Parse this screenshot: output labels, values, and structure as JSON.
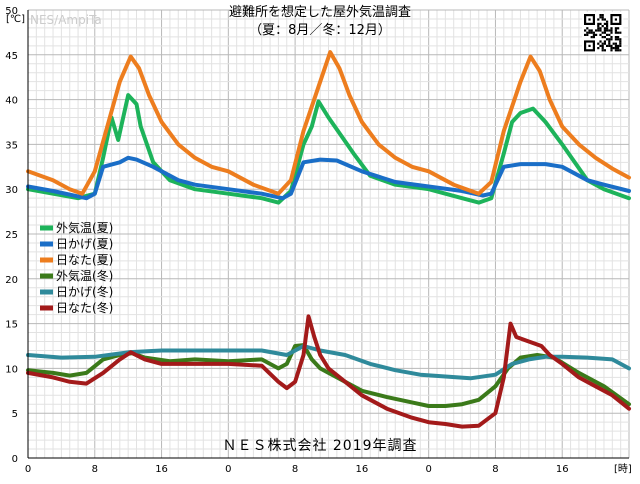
{
  "watermark": "NES/AmpiTa",
  "title": "避難所を想定した屋外気温調査",
  "subtitle": "（夏：8月／冬：12月）",
  "footer_note": "ＮＥＳ株式会社 2019年調査",
  "chart_data": {
    "type": "line",
    "title": "避難所を想定した屋外気温調査",
    "subtitle": "（夏：8月／冬：12月）",
    "ylabel": "[℃]",
    "xlabel": "[時]",
    "ylim": [
      0,
      50
    ],
    "xlim": [
      0,
      72
    ],
    "y_ticks": [
      0,
      5,
      10,
      15,
      20,
      25,
      30,
      35,
      40,
      45,
      50
    ],
    "y_tick_labels": [
      "0",
      "5",
      "10",
      "15",
      "20",
      "25",
      "30",
      "35",
      "40",
      "45",
      "50"
    ],
    "x_ticks": [
      0,
      8,
      16,
      24,
      32,
      40,
      48,
      56,
      64
    ],
    "x_tick_labels": [
      "0",
      "8",
      "16",
      "0",
      "8",
      "16",
      "0",
      "8",
      "16"
    ],
    "grid": true,
    "legend_position": "middle-left",
    "series": [
      {
        "name": "外気温(夏)",
        "color": "#1db35a",
        "x": [
          0,
          3,
          6,
          8,
          9,
          10,
          10.8,
          12,
          13,
          13.5,
          15,
          17,
          20,
          24,
          28,
          30,
          31.5,
          33,
          34,
          34.8,
          36,
          37.5,
          39,
          41,
          44,
          48,
          52,
          54,
          55.5,
          57,
          58,
          59,
          60.5,
          62,
          64,
          67,
          69,
          72
        ],
        "y": [
          30,
          29.5,
          29,
          29.5,
          33.5,
          38,
          35.5,
          40.5,
          39.5,
          37,
          33,
          31,
          30,
          29.5,
          29,
          28.5,
          29.8,
          35,
          37,
          39.8,
          38,
          36,
          34,
          31.5,
          30.5,
          30,
          29,
          28.5,
          29,
          34,
          37.5,
          38.5,
          39,
          37.5,
          35,
          31,
          30,
          29
        ]
      },
      {
        "name": "日かげ(夏)",
        "color": "#1a6ec7",
        "x": [
          0,
          3,
          6,
          7,
          8,
          9,
          11,
          12,
          13,
          15,
          18,
          20,
          24,
          28,
          30.5,
          31.5,
          33,
          35,
          37,
          40,
          44,
          48,
          52,
          54.5,
          55.5,
          57,
          59,
          62,
          64,
          67,
          69,
          72
        ],
        "y": [
          30.3,
          29.8,
          29.2,
          29,
          29.5,
          32.5,
          33,
          33.5,
          33.3,
          32.5,
          31,
          30.5,
          30,
          29.5,
          29,
          29.5,
          33,
          33.3,
          33.2,
          32,
          30.8,
          30.3,
          29.8,
          29.3,
          29.5,
          32.5,
          32.8,
          32.8,
          32.5,
          31,
          30.5,
          29.8
        ]
      },
      {
        "name": "日なた(夏)",
        "color": "#ed7d1e",
        "x": [
          0,
          3,
          5,
          6.5,
          8,
          9.5,
          11,
          12.3,
          13.3,
          14.5,
          16,
          18,
          20,
          22,
          24,
          27,
          30,
          31.5,
          33,
          35,
          36.2,
          37.3,
          38.5,
          40,
          42,
          44,
          46,
          48,
          51,
          54,
          55.5,
          57,
          59,
          60.2,
          61.3,
          62.5,
          64,
          66,
          68,
          70,
          72
        ],
        "y": [
          32,
          31,
          30,
          29.5,
          32,
          37,
          42,
          44.8,
          43.5,
          40.5,
          37.5,
          35,
          33.5,
          32.5,
          32,
          30.5,
          29.5,
          31,
          36.5,
          42,
          45.3,
          43.5,
          40.5,
          37.5,
          35,
          33.5,
          32.5,
          32,
          30.5,
          29.5,
          30.8,
          36.5,
          42,
          44.8,
          43.2,
          40,
          37,
          35,
          33.5,
          32.3,
          31.3
        ]
      },
      {
        "name": "外気温(冬)",
        "color": "#3b7a1a",
        "x": [
          0,
          3,
          5,
          7,
          9,
          11,
          12.5,
          14,
          17,
          20,
          24,
          28,
          30,
          31,
          32,
          33,
          34,
          35,
          36,
          38,
          40,
          43,
          46,
          48,
          50,
          52,
          54,
          56,
          57.5,
          59,
          61,
          63,
          66,
          69,
          72
        ],
        "y": [
          9.8,
          9.5,
          9.2,
          9.5,
          11,
          11.5,
          11.7,
          11.2,
          10.8,
          11,
          10.8,
          11,
          10,
          10.5,
          12.5,
          12.6,
          11,
          10,
          9.5,
          8.5,
          7.5,
          6.8,
          6.2,
          5.8,
          5.8,
          6,
          6.5,
          8,
          10,
          11.2,
          11.5,
          11.2,
          9.5,
          8,
          6
        ]
      },
      {
        "name": "日かげ(冬)",
        "color": "#2f8a9b",
        "x": [
          0,
          4,
          8,
          12,
          16,
          20,
          24,
          28,
          31,
          33,
          35,
          38,
          41,
          44,
          47,
          50,
          53,
          56,
          58,
          60,
          62,
          64,
          67,
          70,
          72
        ],
        "y": [
          11.5,
          11.2,
          11.3,
          11.8,
          12,
          12,
          12,
          12,
          11.5,
          12.5,
          12,
          11.5,
          10.5,
          9.8,
          9.3,
          9.1,
          8.9,
          9.3,
          10.5,
          11,
          11.3,
          11.3,
          11.2,
          11,
          10
        ]
      },
      {
        "name": "日なた(冬)",
        "color": "#a31a1a",
        "x": [
          0,
          3,
          5,
          7,
          9,
          11,
          12.3,
          14,
          16,
          20,
          24,
          28,
          30,
          31,
          32,
          33,
          33.6,
          34.3,
          35,
          36,
          38,
          40,
          43,
          46,
          48,
          50,
          52,
          54,
          56,
          57,
          57.8,
          58.5,
          60,
          61.5,
          62.5,
          64,
          66,
          68,
          70,
          72
        ],
        "y": [
          9.5,
          9,
          8.5,
          8.3,
          9.5,
          11,
          11.8,
          11,
          10.5,
          10.5,
          10.5,
          10.3,
          8.5,
          7.8,
          8.5,
          11.5,
          15.8,
          13.5,
          11.5,
          10,
          8.5,
          7,
          5.5,
          4.5,
          4,
          3.8,
          3.5,
          3.6,
          5,
          9,
          15,
          13.5,
          13,
          12.5,
          11.5,
          10.5,
          9,
          8,
          7,
          5.5
        ]
      }
    ]
  }
}
